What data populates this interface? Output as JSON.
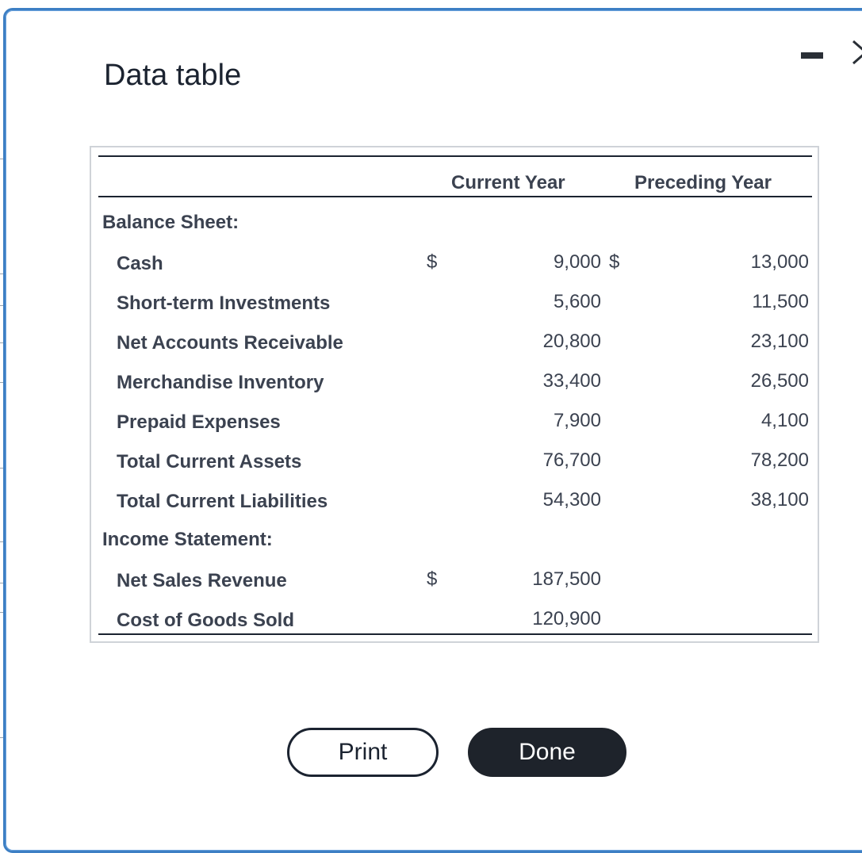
{
  "dialog": {
    "title": "Data table"
  },
  "table": {
    "headers": {
      "current": "Current Year",
      "preceding": "Preceding Year"
    },
    "currency_symbol": "$",
    "sections": {
      "balance_sheet": "Balance Sheet:",
      "income_statement": "Income Statement:"
    },
    "balance_rows": [
      {
        "label": "Cash",
        "current": "9,000",
        "preceding": "13,000"
      },
      {
        "label": "Short-term Investments",
        "current": "5,600",
        "preceding": "11,500"
      },
      {
        "label": "Net Accounts Receivable",
        "current": "20,800",
        "preceding": "23,100"
      },
      {
        "label": "Merchandise Inventory",
        "current": "33,400",
        "preceding": "26,500"
      },
      {
        "label": "Prepaid Expenses",
        "current": "7,900",
        "preceding": "4,100"
      },
      {
        "label": "Total Current Assets",
        "current": "76,700",
        "preceding": "78,200"
      },
      {
        "label": "Total Current Liabilities",
        "current": "54,300",
        "preceding": "38,100"
      }
    ],
    "income_rows": [
      {
        "label": "Net Sales Revenue",
        "current": "187,500"
      },
      {
        "label": "Cost of Goods Sold",
        "current": "120,900"
      }
    ]
  },
  "buttons": {
    "print": "Print",
    "done": "Done"
  },
  "icons": {
    "minimize": "minimize-icon",
    "close": "close-icon"
  },
  "colors": {
    "dialog_border": "#3d7fc4",
    "done_button": "#1e232b",
    "text": "#3b4250"
  }
}
